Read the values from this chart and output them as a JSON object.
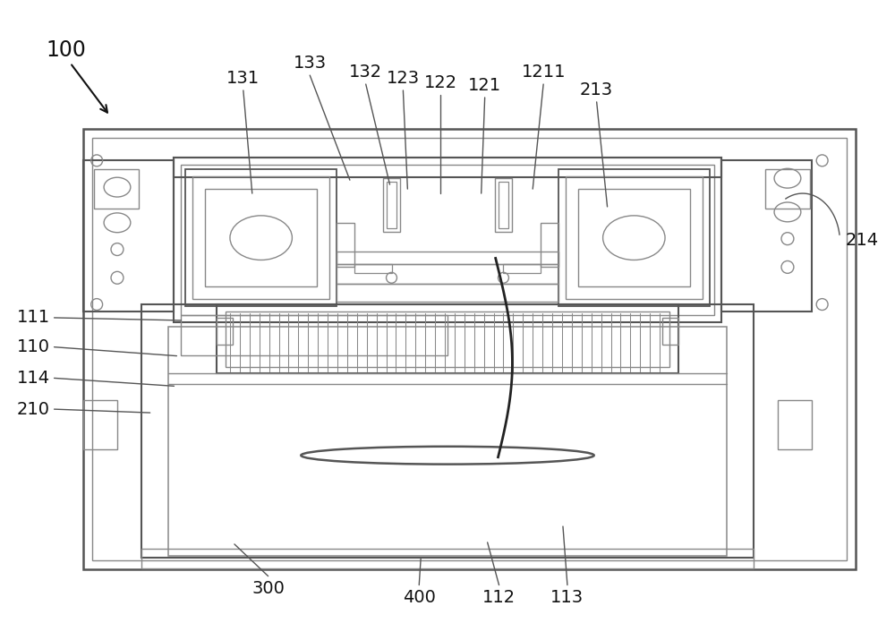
{
  "bg": "#ffffff",
  "lc": "#888888",
  "lc2": "#555555",
  "black": "#111111",
  "figsize": [
    10.0,
    6.96
  ],
  "dpi": 100,
  "top_labels": [
    [
      "131",
      270,
      95,
      280,
      215
    ],
    [
      "133",
      345,
      78,
      390,
      200
    ],
    [
      "132",
      408,
      88,
      435,
      205
    ],
    [
      "123",
      450,
      95,
      455,
      210
    ],
    [
      "122",
      492,
      100,
      492,
      215
    ],
    [
      "121",
      542,
      103,
      538,
      215
    ],
    [
      "1211",
      608,
      88,
      596,
      210
    ],
    [
      "213",
      668,
      108,
      680,
      230
    ]
  ],
  "left_labels": [
    [
      "111",
      52,
      355,
      200,
      358
    ],
    [
      "110",
      52,
      388,
      195,
      398
    ],
    [
      "114",
      52,
      423,
      192,
      432
    ],
    [
      "210",
      52,
      458,
      165,
      462
    ]
  ],
  "bot_labels": [
    [
      "300",
      298,
      650,
      260,
      610
    ],
    [
      "400",
      468,
      660,
      470,
      625
    ],
    [
      "112",
      558,
      660,
      545,
      608
    ],
    [
      "113",
      635,
      660,
      630,
      590
    ]
  ]
}
